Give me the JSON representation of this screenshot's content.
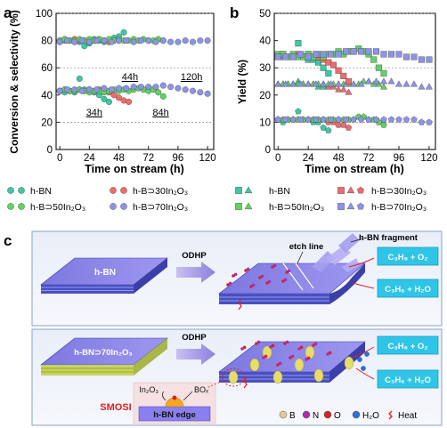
{
  "panels": {
    "a": {
      "letter": "a",
      "xlabel": "Time on stream (h)",
      "ylabel": "Conversion & selectivity (%)"
    },
    "b": {
      "letter": "b",
      "xlabel": "Time on stream (h)",
      "ylabel": "Yield (%)"
    },
    "c": {
      "letter": "c"
    }
  },
  "chart_data": [
    {
      "type": "scatter",
      "panel": "a",
      "xlabel": "Time on stream (h)",
      "ylabel": "Conversion & selectivity (%)",
      "xlim": [
        -3,
        125
      ],
      "ylim": [
        0,
        100
      ],
      "xticks": [
        0,
        24,
        48,
        72,
        96,
        120
      ],
      "yticks": [
        0,
        20,
        40,
        60,
        80,
        100
      ],
      "grid": "dashed horizontal at 20, 60, 100",
      "annotations": [
        {
          "text": "34h",
          "x": 28,
          "y": 25
        },
        {
          "text": "44h",
          "x": 57,
          "y": 51
        },
        {
          "text": "84h",
          "x": 82,
          "y": 25
        },
        {
          "text": "120h",
          "x": 107,
          "y": 51
        }
      ],
      "series": [
        {
          "name": "h-BN",
          "metric": "selectivity",
          "color": "#3cc9a6",
          "marker": "circle",
          "x": [
            0,
            4,
            8,
            12,
            16,
            20,
            24,
            28,
            32,
            36,
            40,
            44,
            48,
            52
          ],
          "y": [
            79,
            80,
            80,
            79,
            79,
            76,
            78,
            81,
            80,
            79,
            79,
            82,
            83,
            86
          ]
        },
        {
          "name": "h-BN",
          "metric": "conversion",
          "color": "#3cc9a6",
          "marker": "circle",
          "x": [
            0,
            4,
            8,
            12,
            16,
            20,
            24,
            28,
            32,
            36,
            40
          ],
          "y": [
            43,
            42,
            43,
            42,
            52,
            44,
            43,
            42,
            40,
            37,
            35
          ]
        },
        {
          "name": "h-B⊃30In₂O₃",
          "metric": "selectivity",
          "color": "#f06b6b",
          "marker": "circle",
          "x": [
            0,
            4,
            8,
            12,
            16,
            20,
            24,
            28,
            32,
            36,
            40,
            44,
            48
          ],
          "y": [
            80,
            81,
            80,
            81,
            80,
            80,
            79,
            80,
            81,
            80,
            79,
            80,
            80
          ]
        },
        {
          "name": "h-B⊃30In₂O₃",
          "metric": "conversion",
          "color": "#f06b6b",
          "marker": "circle",
          "x": [
            0,
            4,
            8,
            12,
            16,
            20,
            24,
            28,
            32,
            36,
            40,
            44,
            48,
            52,
            56
          ],
          "y": [
            43,
            44,
            43,
            43,
            44,
            43,
            44,
            43,
            44,
            43,
            42,
            40,
            38,
            36,
            35
          ]
        },
        {
          "name": "h-B⊃50In₂O₃",
          "metric": "selectivity",
          "color": "#5fd35f",
          "marker": "circle",
          "x": [
            0,
            4,
            8,
            12,
            16,
            20,
            24,
            28,
            32,
            36,
            40,
            44,
            48,
            52,
            56,
            60,
            64,
            68,
            72,
            76,
            80,
            84
          ],
          "y": [
            80,
            81,
            80,
            80,
            81,
            80,
            81,
            80,
            81,
            80,
            81,
            80,
            81,
            80,
            80,
            81,
            80,
            81,
            80,
            80,
            81,
            80
          ]
        },
        {
          "name": "h-B⊃50In₂O₃",
          "metric": "conversion",
          "color": "#5fd35f",
          "marker": "circle",
          "x": [
            0,
            4,
            8,
            12,
            16,
            20,
            24,
            28,
            32,
            36,
            40,
            44,
            48,
            52,
            56,
            60,
            64,
            68,
            72,
            76,
            80,
            84
          ],
          "y": [
            43,
            44,
            43,
            43,
            44,
            43,
            42,
            43,
            43,
            42,
            43,
            44,
            43,
            44,
            43,
            44,
            45,
            44,
            43,
            44,
            42,
            39
          ]
        },
        {
          "name": "h-B⊃70In₂O₃",
          "metric": "selectivity",
          "color": "#8c93e8",
          "marker": "circle",
          "x": [
            0,
            6,
            12,
            18,
            24,
            30,
            36,
            42,
            48,
            54,
            60,
            66,
            72,
            78,
            84,
            90,
            96,
            102,
            108,
            114,
            120
          ],
          "y": [
            79,
            80,
            79,
            80,
            79,
            80,
            80,
            79,
            80,
            80,
            79,
            80,
            80,
            79,
            80,
            79,
            79,
            80,
            79,
            80,
            80
          ]
        },
        {
          "name": "h-B⊃70In₂O₃",
          "metric": "conversion",
          "color": "#8c93e8",
          "marker": "circle",
          "x": [
            0,
            6,
            12,
            18,
            24,
            30,
            36,
            42,
            48,
            54,
            60,
            66,
            72,
            78,
            84,
            90,
            96,
            102,
            108,
            114,
            120
          ],
          "y": [
            43,
            44,
            44,
            43,
            44,
            44,
            45,
            44,
            45,
            45,
            46,
            46,
            46,
            46,
            47,
            46,
            45,
            44,
            43,
            42,
            41
          ]
        }
      ]
    },
    {
      "type": "scatter",
      "panel": "b",
      "xlabel": "Time on stream (h)",
      "ylabel": "Yield (%)",
      "xlim": [
        -3,
        125
      ],
      "ylim": [
        0,
        50
      ],
      "xticks": [
        0,
        24,
        48,
        72,
        96,
        120
      ],
      "yticks": [
        0,
        10,
        20,
        30,
        40,
        50
      ],
      "grid": "dashed horizontal at 10, 30, 50",
      "series": [
        {
          "name": "h-BN",
          "metric": "C3H6",
          "color": "#3cc9a6",
          "marker": "pentagon",
          "x": [
            0,
            4,
            8,
            12,
            16,
            20,
            24,
            28,
            32,
            36,
            40
          ],
          "y": [
            11,
            10,
            11,
            11,
            14,
            11,
            11,
            10,
            10,
            8,
            7
          ]
        },
        {
          "name": "h-B⊃30In₂O₃",
          "metric": "C3H6",
          "color": "#f06b6b",
          "marker": "pentagon",
          "x": [
            0,
            4,
            8,
            12,
            16,
            20,
            24,
            28,
            32,
            36,
            40,
            44,
            48,
            52,
            56
          ],
          "y": [
            11,
            11,
            11,
            11,
            11,
            11,
            11,
            11,
            11,
            11,
            10,
            10,
            9,
            9,
            8
          ]
        },
        {
          "name": "h-B⊃50In₂O₃",
          "metric": "C3H6",
          "color": "#5fd35f",
          "marker": "pentagon",
          "x": [
            0,
            4,
            8,
            12,
            16,
            20,
            24,
            28,
            32,
            36,
            40,
            44,
            48,
            52,
            56,
            60,
            64,
            68,
            72,
            76,
            80,
            84
          ],
          "y": [
            11,
            11,
            11,
            11,
            11,
            11,
            11,
            11,
            11,
            11,
            11,
            11,
            11,
            11,
            11,
            11,
            12,
            12,
            11,
            11,
            10,
            9
          ]
        },
        {
          "name": "h-B⊃70In₂O₃",
          "metric": "C3H6",
          "color": "#8c93e8",
          "marker": "pentagon",
          "x": [
            0,
            6,
            12,
            18,
            24,
            30,
            36,
            42,
            48,
            54,
            60,
            66,
            72,
            78,
            84,
            90,
            96,
            102,
            108,
            114,
            120
          ],
          "y": [
            11,
            11,
            11,
            11,
            11,
            11,
            11,
            11,
            11,
            11,
            11,
            11,
            11,
            11,
            11,
            11,
            11,
            11,
            11,
            10,
            10
          ]
        },
        {
          "name": "h-BN",
          "metric": "O2",
          "color": "#3cc9a6",
          "marker": "triangle",
          "x": [
            0,
            4,
            8,
            12,
            16,
            20,
            24,
            28,
            32,
            36,
            40
          ],
          "y": [
            24,
            24,
            24,
            24,
            25,
            24,
            24,
            24,
            23,
            23,
            23
          ]
        },
        {
          "name": "h-B⊃30In₂O₃",
          "metric": "O2",
          "color": "#f06b6b",
          "marker": "triangle",
          "x": [
            0,
            4,
            8,
            12,
            16,
            20,
            24,
            28,
            32,
            36,
            40,
            44,
            48,
            52,
            56
          ],
          "y": [
            24,
            24,
            24,
            24,
            24,
            24,
            24,
            24,
            24,
            24,
            23,
            23,
            22,
            22,
            21
          ]
        },
        {
          "name": "h-B⊃50In₂O₃",
          "metric": "O2",
          "color": "#5fd35f",
          "marker": "triangle",
          "x": [
            0,
            4,
            8,
            12,
            16,
            20,
            24,
            28,
            32,
            36,
            40,
            44,
            48,
            52,
            56,
            60,
            64,
            68,
            72,
            76,
            80,
            84
          ],
          "y": [
            24,
            24,
            24,
            24,
            24,
            24,
            24,
            24,
            24,
            24,
            24,
            24,
            24,
            24,
            24,
            24,
            24,
            25,
            25,
            24,
            24,
            23
          ]
        },
        {
          "name": "h-B⊃70In₂O₃",
          "metric": "O2",
          "color": "#8c93e8",
          "marker": "triangle",
          "x": [
            0,
            6,
            12,
            18,
            24,
            30,
            36,
            42,
            48,
            54,
            60,
            66,
            72,
            78,
            84,
            90,
            96,
            102,
            108,
            114,
            120
          ],
          "y": [
            24,
            24,
            24,
            24,
            24,
            24,
            24,
            24,
            24,
            24,
            24,
            24,
            25,
            25,
            25,
            25,
            24,
            24,
            24,
            23,
            23
          ]
        },
        {
          "name": "h-BN",
          "metric": "C3H8",
          "color": "#3cc9a6",
          "marker": "square",
          "x": [
            0,
            4,
            8,
            12,
            16,
            20,
            24,
            28,
            32,
            36,
            40
          ],
          "y": [
            34,
            34,
            34,
            34,
            39,
            34,
            33,
            33,
            32,
            30,
            28
          ]
        },
        {
          "name": "h-B⊃30In₂O₃",
          "metric": "C3H8",
          "color": "#f06b6b",
          "marker": "square",
          "x": [
            0,
            4,
            8,
            12,
            16,
            20,
            24,
            28,
            32,
            36,
            40,
            44,
            48,
            52,
            56
          ],
          "y": [
            34,
            35,
            34,
            34,
            35,
            34,
            35,
            34,
            34,
            33,
            32,
            31,
            29,
            27,
            25
          ]
        },
        {
          "name": "h-B⊃50In₂O₃",
          "metric": "C3H8",
          "color": "#5fd35f",
          "marker": "square",
          "x": [
            0,
            4,
            8,
            12,
            16,
            20,
            24,
            28,
            32,
            36,
            40,
            44,
            48,
            52,
            56,
            60,
            64,
            68,
            72,
            76,
            80,
            84
          ],
          "y": [
            35,
            35,
            34,
            35,
            34,
            34,
            35,
            34,
            35,
            34,
            35,
            35,
            36,
            35,
            36,
            36,
            37,
            36,
            35,
            33,
            30,
            28
          ]
        },
        {
          "name": "h-B⊃70In₂O₃",
          "metric": "C3H8",
          "color": "#8c93e8",
          "marker": "square",
          "x": [
            0,
            6,
            12,
            18,
            24,
            30,
            36,
            42,
            48,
            54,
            60,
            66,
            72,
            78,
            84,
            90,
            96,
            102,
            108,
            114,
            120
          ],
          "y": [
            34,
            34,
            34,
            35,
            34,
            35,
            35,
            35,
            35,
            36,
            36,
            36,
            36,
            36,
            35,
            35,
            35,
            34,
            34,
            33,
            33
          ]
        }
      ]
    }
  ],
  "legend": {
    "left": [
      {
        "label": "h-BN",
        "color": "#3cc9a6",
        "markers": [
          "circle",
          "circle"
        ]
      },
      {
        "label": "h-B⊃30In₂O₃",
        "color": "#f06b6b",
        "markers": [
          "circle",
          "circle"
        ]
      },
      {
        "label": "h-B⊃50In₂O₃",
        "color": "#5fd35f",
        "markers": [
          "circle",
          "circle"
        ]
      },
      {
        "label": "h-B⊃70In₂O₃",
        "color": "#8c93e8",
        "markers": [
          "circle",
          "circle"
        ]
      }
    ],
    "right": [
      {
        "label": "h-BN",
        "color": "#3cc9a6",
        "markers": [
          "square",
          "triangle"
        ]
      },
      {
        "label": "h-B⊃30In₂O₃",
        "color": "#f06b6b",
        "markers": [
          "square",
          "triangle",
          "pentagon"
        ]
      },
      {
        "label": "h-B⊃50In₂O₃",
        "color": "#5fd35f",
        "markers": [
          "square",
          "triangle"
        ]
      },
      {
        "label": "h-B⊃70In₂O₃",
        "color": "#8c93e8",
        "markers": [
          "square",
          "triangle",
          "pentagon"
        ]
      }
    ]
  },
  "schematic": {
    "top": {
      "material": "h-BN",
      "arrow": "ODHP",
      "etch_line": "etch line",
      "fragment": "h-BN fragment",
      "feed": "C₃H₈ + O₂",
      "product": "C₃H₆ + H₂O"
    },
    "bottom": {
      "material": "h-BN⊃70In₂O₃",
      "arrow": "ODHP",
      "feed": "C₃H₈ + O₂",
      "product": "C₃H₆ + H₂O",
      "inset_left": "In₂O₃",
      "inset_right": "BOₓ",
      "inset_base": "h-BN edge",
      "smosi": "SMOSI"
    },
    "atom_legend": [
      {
        "label": "B",
        "color": "#e8c79a"
      },
      {
        "label": "N",
        "color": "#b02ab0"
      },
      {
        "label": "O",
        "color": "#d42424"
      },
      {
        "label": "H₂O",
        "color": "#2e6fd8"
      },
      {
        "label": "Heat",
        "color": "#e02020"
      }
    ]
  }
}
